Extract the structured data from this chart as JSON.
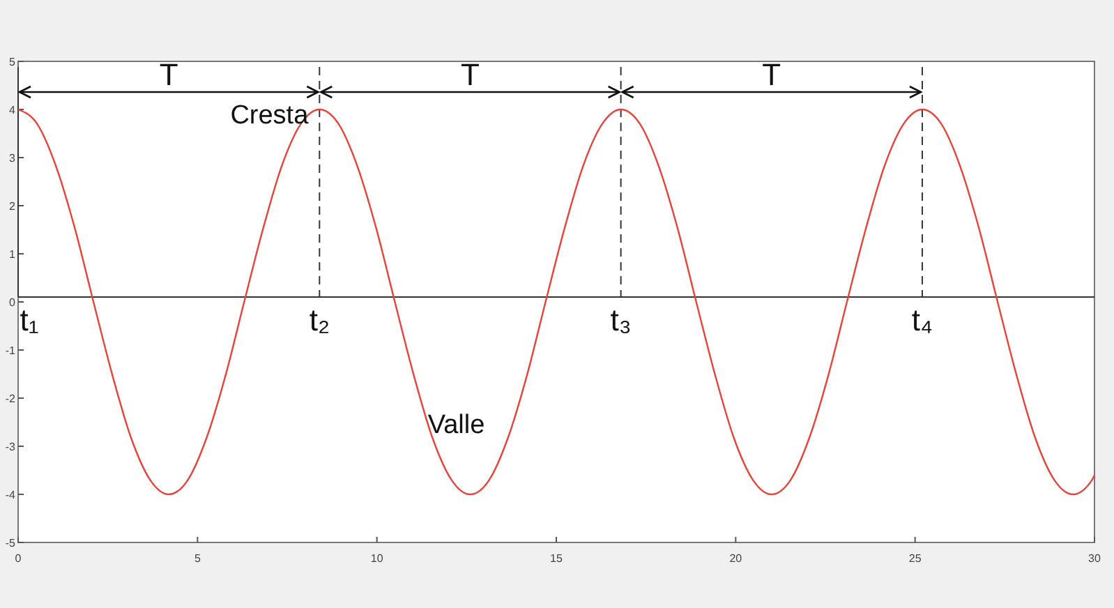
{
  "chart_data": {
    "type": "line",
    "x": [
      0,
      0.53,
      1.05,
      1.58,
      2.1,
      2.63,
      3.15,
      3.68,
      4.2,
      4.73,
      5.25,
      5.78,
      6.3,
      6.83,
      7.35,
      7.88,
      8.4,
      8.93,
      9.45,
      9.98,
      10.5,
      11.03,
      11.55,
      12.08,
      12.6,
      13.13,
      13.65,
      14.18,
      14.7,
      15.23,
      15.75,
      16.28,
      16.8,
      17.33,
      17.85,
      18.38,
      18.9,
      19.43,
      19.95,
      20.48,
      21,
      21.53,
      22.05,
      22.58,
      23.1,
      23.63,
      24.15,
      24.68,
      25.2,
      25.73,
      26.25,
      26.78,
      27.3,
      27.83,
      28.35,
      28.88,
      29.4,
      29.93,
      30
    ],
    "series": [
      {
        "color": "#e8433a",
        "values": [
          4,
          3.7,
          2.83,
          1.53,
          0,
          -1.53,
          -2.83,
          -3.7,
          -4,
          -3.7,
          -2.83,
          -1.53,
          0,
          1.53,
          2.83,
          3.7,
          4,
          3.7,
          2.83,
          1.53,
          0,
          -1.53,
          -2.83,
          -3.7,
          -4,
          -3.7,
          -2.83,
          -1.53,
          0,
          1.53,
          2.83,
          3.7,
          4,
          3.7,
          2.83,
          1.53,
          0,
          -1.53,
          -2.83,
          -3.7,
          -4,
          -3.7,
          -2.83,
          -1.53,
          0,
          1.53,
          2.83,
          3.7,
          4,
          3.7,
          2.83,
          1.53,
          0,
          -1.53,
          -2.83,
          -3.7,
          -4,
          -3.7,
          -3.6
        ]
      }
    ],
    "xlim": [
      0,
      30
    ],
    "xticks": [
      0,
      5,
      10,
      15,
      20,
      25,
      30
    ],
    "ylim": [
      -5,
      5
    ],
    "yticks": [
      -5,
      -4,
      -3,
      -2,
      -1,
      0,
      1,
      2,
      3,
      4,
      5
    ],
    "grid": false,
    "marker": "none",
    "line_style": "solid",
    "ref_lines": [
      {
        "axis": "y",
        "value": 0.1,
        "color": "#333333",
        "line_style": "solid"
      },
      {
        "axis": "x",
        "value": 0,
        "label": "t₁",
        "color": "#333333",
        "line_style": "solid"
      },
      {
        "axis": "x",
        "value": 8.4,
        "label": "t₂",
        "color": "#333333",
        "line_style": "dashed"
      },
      {
        "axis": "x",
        "value": 16.8,
        "label": "t₃",
        "color": "#333333",
        "line_style": "dashed"
      },
      {
        "axis": "x",
        "value": 25.2,
        "label": "t₄",
        "color": "#333333",
        "line_style": "dashed"
      }
    ],
    "annotations": [
      "T",
      "T",
      "T",
      {
        "text": "Cresta",
        "x": 8.4,
        "y": 4
      },
      {
        "text": "Valle",
        "x": 12.6,
        "y": -4
      }
    ]
  }
}
